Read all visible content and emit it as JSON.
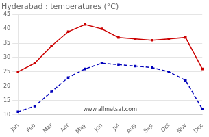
{
  "chart_data": {
    "type": "line",
    "title": "Hyderabad : temperatures (°C)",
    "categories": [
      "Jan",
      "Feb",
      "Mar",
      "Apr",
      "May",
      "Jun",
      "Jul",
      "Aug",
      "Sep",
      "Oct",
      "Nov",
      "Dec"
    ],
    "series": [
      {
        "color": "#cc0000",
        "marker": "square",
        "line_style": "solid",
        "values": [
          25,
          28,
          34,
          39,
          41.5,
          40,
          37,
          36.5,
          36,
          36.5,
          37,
          26
        ]
      },
      {
        "color": "#0000bb",
        "marker": "square",
        "line_style": "dashed",
        "values": [
          11,
          13,
          18,
          23,
          26,
          28,
          27.5,
          27,
          26.5,
          25,
          22,
          12
        ]
      }
    ],
    "ylim": [
      10,
      45
    ],
    "yticks": [
      10,
      15,
      20,
      25,
      30,
      35,
      40,
      45
    ],
    "grid": true,
    "annotation": "www.allmetsat.com"
  }
}
